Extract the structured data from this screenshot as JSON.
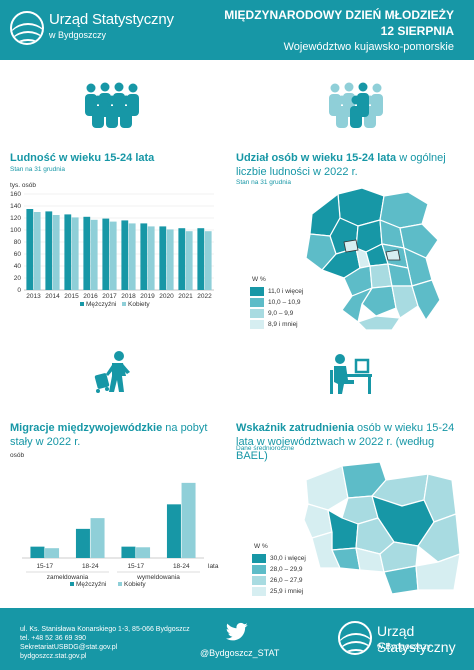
{
  "header": {
    "logo_title": "Urząd Statystyczny",
    "logo_subtitle": "w Bydgoszczy",
    "line1": "MIĘDZYNARODOWY DZIEŃ MŁODZIEŻY",
    "line2": "12 SIERPNIA",
    "line3": "Województwo kujawsko-pomorskie"
  },
  "colors": {
    "accent": "#1797a6",
    "men": "#1797a6",
    "women": "#8fcfd8",
    "legend_dark": "#1797a6",
    "legend_mid": "#5dbcc8",
    "legend_light": "#a8dbe1",
    "legend_lightest": "#d6eef1"
  },
  "icons": [
    "people-group-icon",
    "people-group-highlighted-icon",
    "traveler-with-suitcase-icon",
    "person-at-desk-icon",
    "twitter-bird-icon",
    "logo-circle-icon"
  ],
  "population": {
    "title": "Ludność w wieku 15-24 lata",
    "subtitle": "Stan na 31 grudnia"
  },
  "share": {
    "title_bold": "Udział osób w wieku 15-24 lata",
    "title_rest": " w ogólnej liczbie ludności w 2022 r.",
    "subtitle": "Stan na 31 grudnia",
    "legend_header": "W %",
    "legend": [
      "11,0 i więcej",
      "10,0 – 10,9",
      "9,0 – 9,9",
      "8,9 i mniej"
    ]
  },
  "migration": {
    "title_bold": "Migracje międzywojewódzkie",
    "title_rest": " na pobyt stały w 2022 r."
  },
  "employment": {
    "title_bold": "Wskaźnik zatrudnienia",
    "title_rest": " osób w wieku 15-24 lata w województwach w 2022 r. (według BAEL)",
    "subtitle": "Dane średnioroczne",
    "legend_header": "W %",
    "legend": [
      "30,0 i więcej",
      "28,0 – 29,9",
      "26,0 – 27,9",
      "25,9 i mniej"
    ]
  },
  "footer": {
    "addr1": "ul. Ks. Stanisława Konarskiego 1-3, 85-066 Bydgoszcz",
    "addr2": "tel. +48 52 36 69 390",
    "addr3": "SekretariatUSBDG@stat.gov.pl",
    "addr4": "bydgoszcz.stat.gov.pl",
    "handle": "@Bydgoszcz_STAT",
    "logo_title": "Urząd Statystyczny",
    "logo_subtitle": "w Bydgoszczy"
  },
  "chart_data": [
    {
      "type": "bar",
      "ylabel": "tys. osób",
      "ylim": [
        0,
        160
      ],
      "yticks": [
        0,
        20,
        40,
        60,
        80,
        100,
        120,
        140,
        160
      ],
      "categories": [
        "2013",
        "2014",
        "2015",
        "2016",
        "2017",
        "2018",
        "2019",
        "2020",
        "2021",
        "2022"
      ],
      "series": [
        {
          "name": "Mężczyźni",
          "values": [
            135,
            131,
            126,
            122,
            119,
            116,
            111,
            106,
            103,
            103
          ]
        },
        {
          "name": "Kobiety",
          "values": [
            130,
            125,
            121,
            117,
            114,
            111,
            106,
            101,
            98,
            98
          ]
        }
      ],
      "legend_position": "bottom"
    },
    {
      "type": "bar",
      "ylabel": "osób",
      "ylim": [
        0,
        300
      ],
      "categories": [
        "15-17",
        "18-24",
        "15-17",
        "18-24"
      ],
      "groups": [
        "zameldowania",
        "wymeldowania"
      ],
      "xunit": "lata",
      "series": [
        {
          "name": "Mężczyźni",
          "values": [
            37,
            95,
            37,
            175
          ]
        },
        {
          "name": "Kobiety",
          "values": [
            32,
            130,
            35,
            245
          ]
        }
      ],
      "legend_position": "bottom"
    }
  ]
}
